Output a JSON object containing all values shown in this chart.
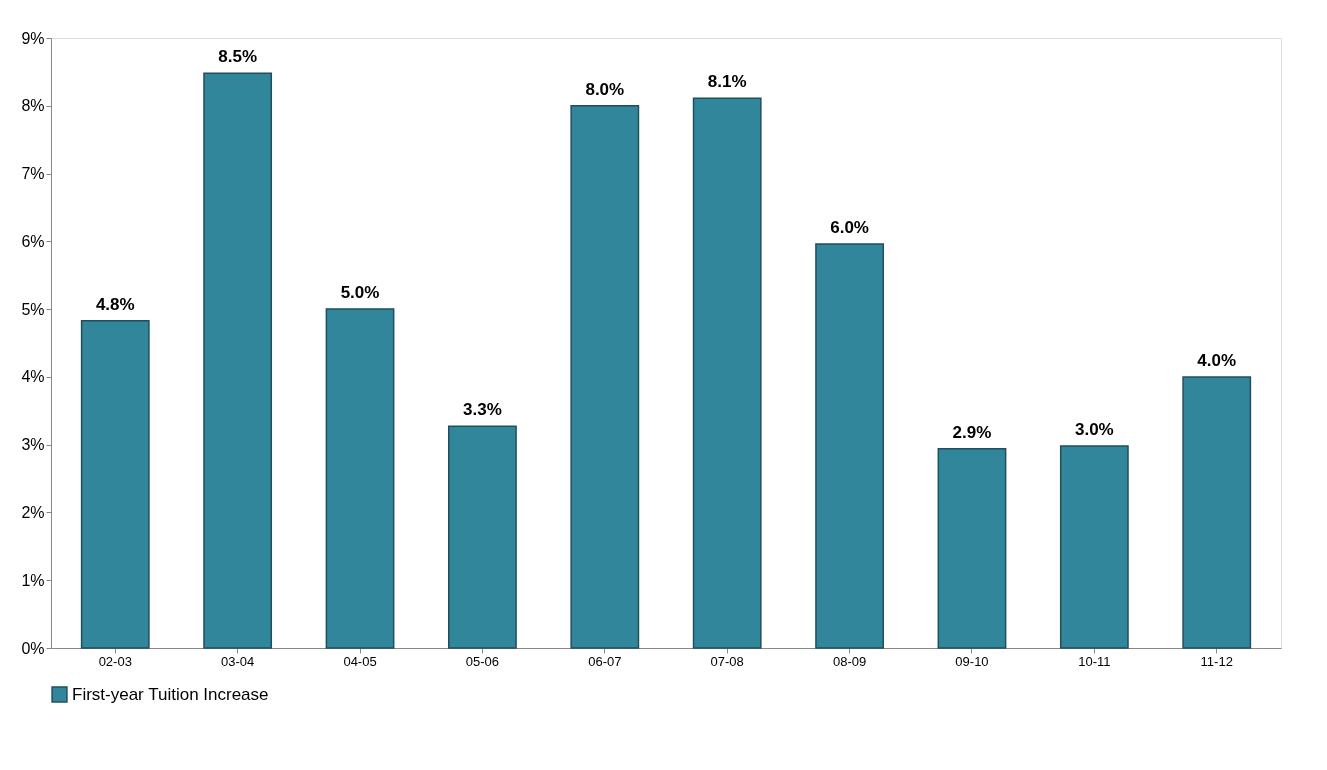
{
  "chart_data": {
    "type": "bar",
    "categories": [
      "02-03",
      "03-04",
      "04-05",
      "05-06",
      "06-07",
      "07-08",
      "08-09",
      "09-10",
      "10-11",
      "11-12"
    ],
    "series": [
      {
        "name": "First-year Tuition Increase",
        "color": "#31869b",
        "values": [
          4.83,
          8.48,
          5.0,
          3.27,
          8.0,
          8.11,
          5.96,
          2.94,
          2.98,
          4.0
        ]
      }
    ],
    "value_labels": [
      "4.8%",
      "8.5%",
      "5.0%",
      "3.3%",
      "8.0%",
      "8.1%",
      "6.0%",
      "2.9%",
      "3.0%",
      "4.0%"
    ],
    "ylim": [
      0,
      9
    ],
    "yticks": [
      {
        "value": 0,
        "label": "0%"
      },
      {
        "value": 1,
        "label": "1%"
      },
      {
        "value": 2,
        "label": "2%"
      },
      {
        "value": 3,
        "label": "3%"
      },
      {
        "value": 4,
        "label": "4%"
      },
      {
        "value": 5,
        "label": "5%"
      },
      {
        "value": 6,
        "label": "6%"
      },
      {
        "value": 7,
        "label": "7%"
      },
      {
        "value": 8,
        "label": "8%"
      },
      {
        "value": 9,
        "label": "9%"
      }
    ],
    "grid": false,
    "legend": "bottom"
  }
}
